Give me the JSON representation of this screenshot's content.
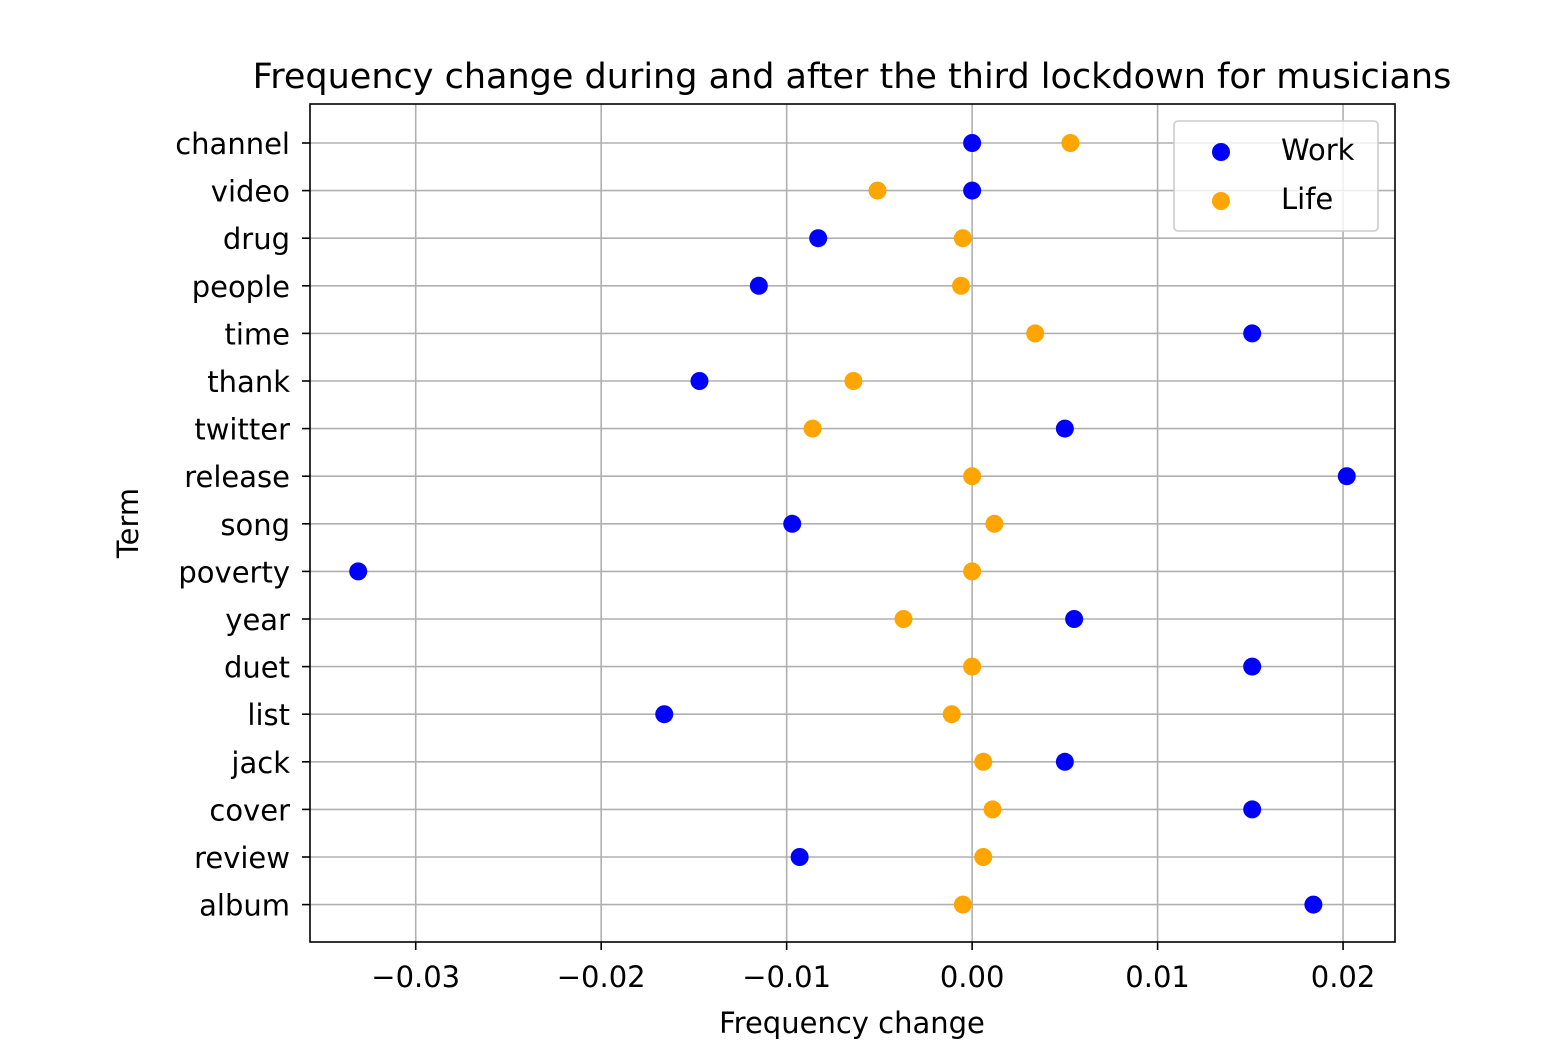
{
  "chart_data": {
    "type": "scatter",
    "title": "Frequency change during and after the third lockdown for musicians",
    "xlabel": "Frequency change",
    "ylabel": "Term",
    "xlim": [
      -0.0357,
      0.0228
    ],
    "grid": true,
    "legend_position": "top-right",
    "x_ticks": [
      -0.03,
      -0.02,
      -0.01,
      0.0,
      0.01,
      0.02
    ],
    "x_tick_labels": [
      "−0.03",
      "−0.02",
      "−0.01",
      "0.00",
      "0.01",
      "0.02"
    ],
    "categories": [
      "channel",
      "video",
      "drug",
      "people",
      "time",
      "thank",
      "twitter",
      "release",
      "song",
      "poverty",
      "year",
      "duet",
      "list",
      "jack",
      "cover",
      "review",
      "album"
    ],
    "series": [
      {
        "name": "Work",
        "color": "#0000ff",
        "values": [
          0.0,
          0.0,
          -0.0083,
          -0.0115,
          0.0151,
          -0.0147,
          0.005,
          0.0202,
          -0.0097,
          -0.0331,
          0.0055,
          0.0151,
          -0.0166,
          0.005,
          0.0151,
          -0.0093,
          0.0184
        ]
      },
      {
        "name": "Life",
        "color": "#ffa500",
        "values": [
          0.0053,
          -0.0051,
          -0.0005,
          -0.0006,
          0.0034,
          -0.0064,
          -0.0086,
          0.0,
          0.0012,
          0.0,
          -0.0037,
          0.0,
          -0.0011,
          0.0006,
          0.0011,
          0.0006,
          -0.0005
        ]
      }
    ]
  }
}
